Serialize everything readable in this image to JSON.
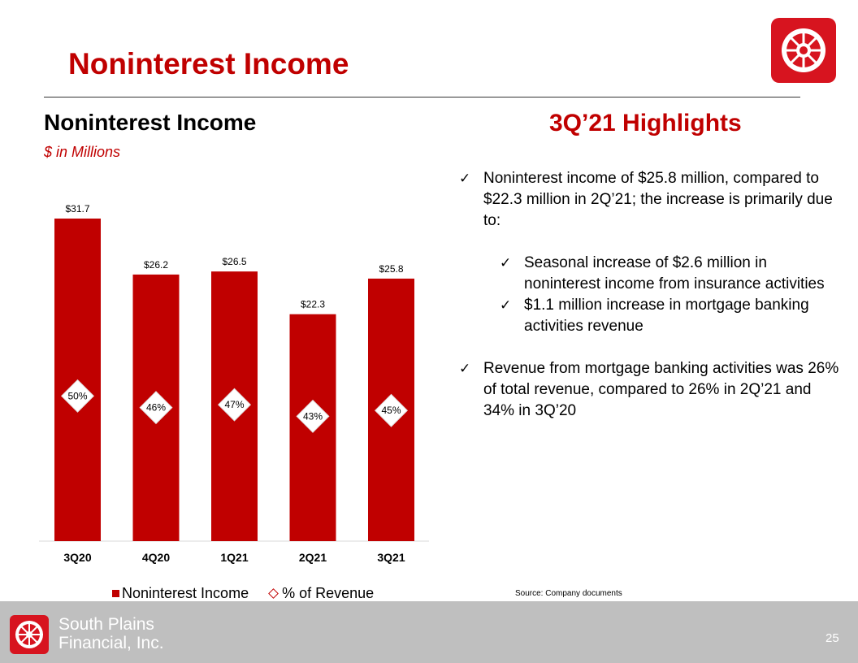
{
  "slide": {
    "title": "Noninterest Income",
    "page_number": "25",
    "source": "Source: Company documents"
  },
  "footer": {
    "company_line1": "South Plains",
    "company_line2": "Financial, Inc."
  },
  "highlights": {
    "title": "3Q’21 Highlights",
    "bullet1": "Noninterest income of $25.8 million, compared to $22.3 million in 2Q’21; the increase is primarily due to:",
    "sub1": "Seasonal increase of $2.6 million in noninterest income from insurance activities",
    "sub2": "$1.1 million increase in mortgage banking activities revenue",
    "bullet2": "Revenue from mortgage banking activities was 26% of total revenue, compared to 26% in 2Q’21 and 34% in 3Q’20",
    "check_glyph": "✓"
  },
  "colors": {
    "accent": "#c00000",
    "footer": "#bfbfbf"
  },
  "chart_data": {
    "type": "bar",
    "title": "Noninterest Income",
    "subtitle": "$ in Millions",
    "categories": [
      "3Q20",
      "4Q20",
      "1Q21",
      "2Q21",
      "3Q21"
    ],
    "series": [
      {
        "name": "Noninterest Income",
        "values": [
          31.7,
          26.2,
          26.5,
          22.3,
          25.8
        ],
        "labels": [
          "$31.7",
          "$26.2",
          "$26.5",
          "$22.3",
          "$25.8"
        ]
      },
      {
        "name": "% of Revenue",
        "values": [
          50,
          46,
          47,
          43,
          45
        ],
        "labels": [
          "50%",
          "46%",
          "47%",
          "43%",
          "45%"
        ]
      }
    ],
    "ylim": [
      0,
      31.7
    ],
    "legend": "bottom",
    "grid": false
  }
}
